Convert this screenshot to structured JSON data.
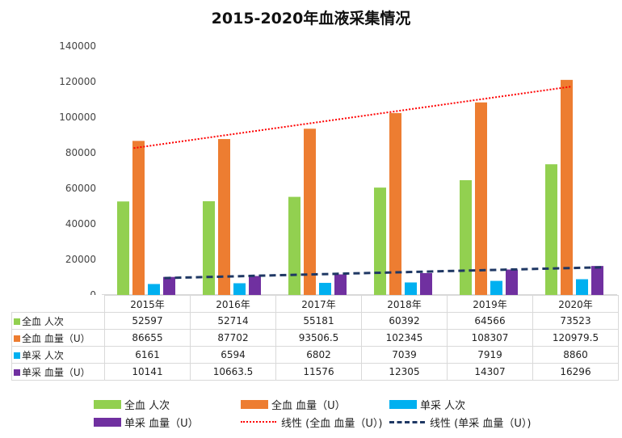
{
  "chart_data": {
    "type": "bar",
    "title": "2015-2020年血液采集情况",
    "categories": [
      "2015年",
      "2016年",
      "2017年",
      "2018年",
      "2019年",
      "2020年"
    ],
    "ylim": [
      0,
      140000
    ],
    "yticks": [
      "0",
      "20000",
      "40000",
      "60000",
      "80000",
      "100000",
      "120000",
      "140000"
    ],
    "series": [
      {
        "name": "全血 人次",
        "color": "#92d050",
        "values": [
          52597,
          52714,
          55181,
          60392,
          64566,
          73523
        ]
      },
      {
        "name": "全血 血量（U）",
        "color": "#ed7d31",
        "values": [
          86655,
          87702,
          93506.5,
          102345,
          108307,
          120979.5
        ]
      },
      {
        "name": "单采 人次",
        "color": "#00b0f0",
        "values": [
          6161,
          6594,
          6802,
          7039,
          7919,
          8860
        ]
      },
      {
        "name": "单采 血量（U）",
        "color": "#7030a0",
        "values": [
          10141,
          10663.5,
          11576,
          12305,
          14307,
          16296
        ]
      }
    ],
    "table_rows": [
      [
        "52597",
        "52714",
        "55181",
        "60392",
        "64566",
        "73523"
      ],
      [
        "86655",
        "87702",
        "93506.5",
        "102345",
        "108307",
        "120979.5"
      ],
      [
        "6161",
        "6594",
        "6802",
        "7039",
        "7919",
        "8860"
      ],
      [
        "10141",
        "10663.5",
        "11576",
        "12305",
        "14307",
        "16296"
      ]
    ],
    "trendlines": [
      {
        "name": "线性 (全血 血量（U）)",
        "series_index": 1,
        "style": "dotted",
        "color": "#ff0000"
      },
      {
        "name": "线性 (单采 血量（U）)",
        "series_index": 3,
        "style": "dashed",
        "color": "#1f3864"
      }
    ],
    "grid": false,
    "legend_position": "bottom"
  }
}
